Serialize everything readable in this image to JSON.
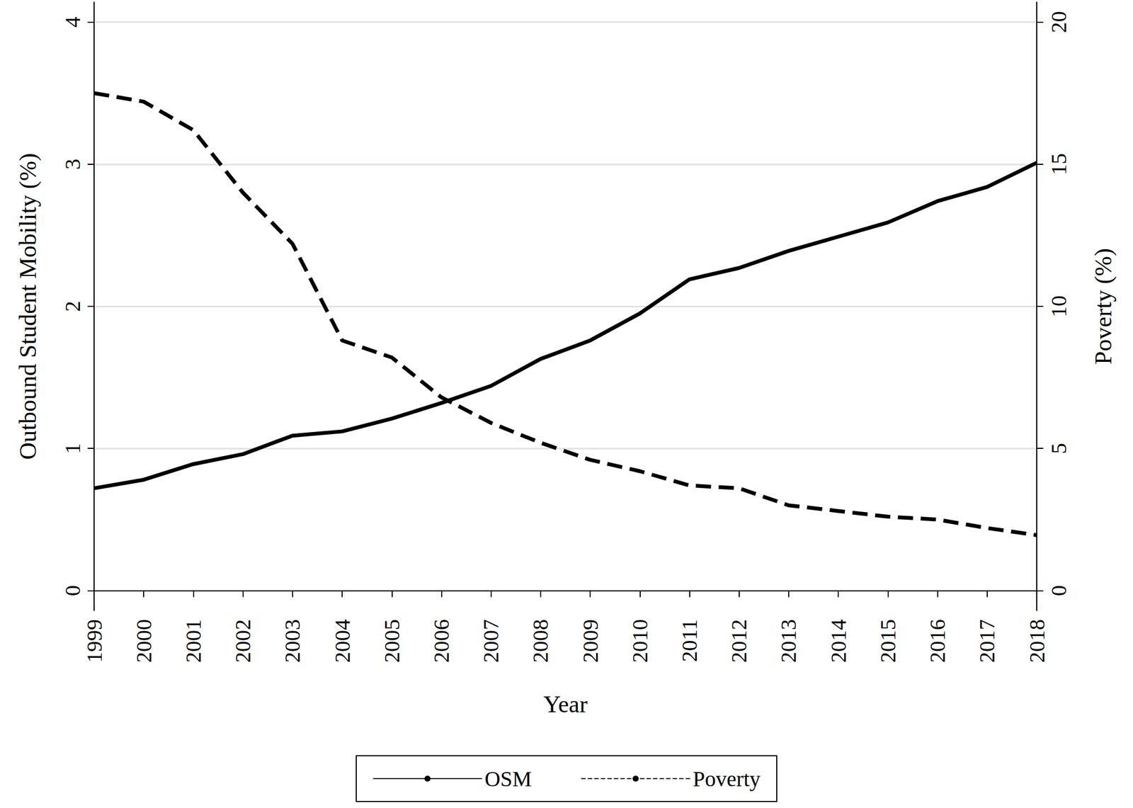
{
  "chart_data": {
    "type": "line",
    "x_label": "Year",
    "y_label": "Outbound Student Mobility (%)",
    "y2_label": "Poverty (%)",
    "categories": [
      "1999",
      "2000",
      "2001",
      "2002",
      "2003",
      "2004",
      "2005",
      "2006",
      "2007",
      "2008",
      "2009",
      "2010",
      "2011",
      "2012",
      "2013",
      "2014",
      "2015",
      "2016",
      "2017",
      "2018"
    ],
    "series": [
      {
        "name": "OSM",
        "color": "#000000",
        "line_style": "solid",
        "values": [
          0.72,
          0.78,
          0.89,
          0.96,
          1.09,
          1.12,
          1.21,
          1.32,
          1.44,
          1.63,
          1.76,
          1.95,
          2.19,
          2.27,
          2.39,
          2.49,
          2.59,
          2.74,
          2.84,
          3.01
        ]
      },
      {
        "name": "Poverty",
        "color": "#000000",
        "line_style": "dashed",
        "axis": "y2",
        "values": [
          17.5,
          17.2,
          16.2,
          14.0,
          12.2,
          8.8,
          8.2,
          6.8,
          5.9,
          5.2,
          4.6,
          4.2,
          3.7,
          3.6,
          3.0,
          2.8,
          2.6,
          2.5,
          2.2,
          1.95
        ]
      }
    ],
    "ylim": [
      -0.14,
      4.14
    ],
    "yticks": [
      0,
      1,
      2,
      3,
      4
    ],
    "y2lim": [
      -0.7,
      20.7
    ],
    "y2ticks": [
      0,
      5,
      10,
      15,
      20
    ],
    "grid": true,
    "legend": "bottom"
  }
}
